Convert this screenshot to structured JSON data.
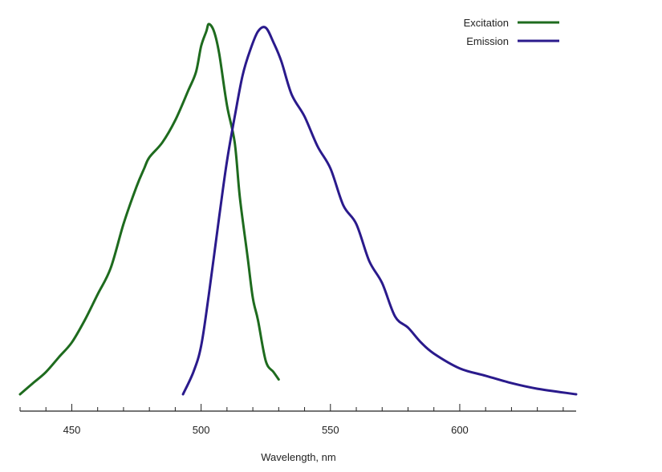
{
  "chart_data": {
    "type": "line",
    "title": "",
    "xlabel": "Wavelength, nm",
    "ylabel": "",
    "xlim": [
      430,
      645
    ],
    "ylim": [
      0,
      100
    ],
    "major_ticks": [
      450,
      500,
      550,
      600
    ],
    "major_tick_labels": [
      "450",
      "500",
      "550",
      "600"
    ],
    "minor_tick_step": 10,
    "grid": false,
    "legend_position": "top-right",
    "series": [
      {
        "name": "Excitation",
        "color": "#1e6b1e",
        "x": [
          430,
          435,
          440,
          445,
          450,
          455,
          460,
          465,
          470,
          475,
          478,
          480,
          485,
          490,
          495,
          498,
          500,
          502,
          503,
          505,
          507,
          510,
          513,
          515,
          518,
          520,
          522,
          525,
          528,
          530
        ],
        "y": [
          0,
          3,
          6,
          10,
          14,
          20,
          27,
          34,
          46,
          56,
          61,
          64,
          68,
          74,
          82,
          87,
          94,
          98,
          100,
          98,
          92,
          78,
          68,
          53,
          37,
          26,
          20,
          9,
          6,
          4
        ]
      },
      {
        "name": "Emission",
        "color": "#2a1a8c",
        "x": [
          493,
          497,
          500,
          503,
          507,
          510,
          513,
          516,
          519,
          522,
          525,
          528,
          531,
          535,
          540,
          545,
          550,
          555,
          560,
          565,
          570,
          575,
          580,
          585,
          590,
          600,
          610,
          620,
          630,
          645
        ],
        "y": [
          0,
          6,
          13,
          27,
          48,
          63,
          75,
          86,
          93,
          98,
          99,
          95,
          90,
          81,
          75,
          67,
          61,
          51,
          46,
          36,
          30,
          21,
          18,
          14,
          11,
          7,
          5,
          3,
          1.5,
          0
        ]
      }
    ]
  }
}
